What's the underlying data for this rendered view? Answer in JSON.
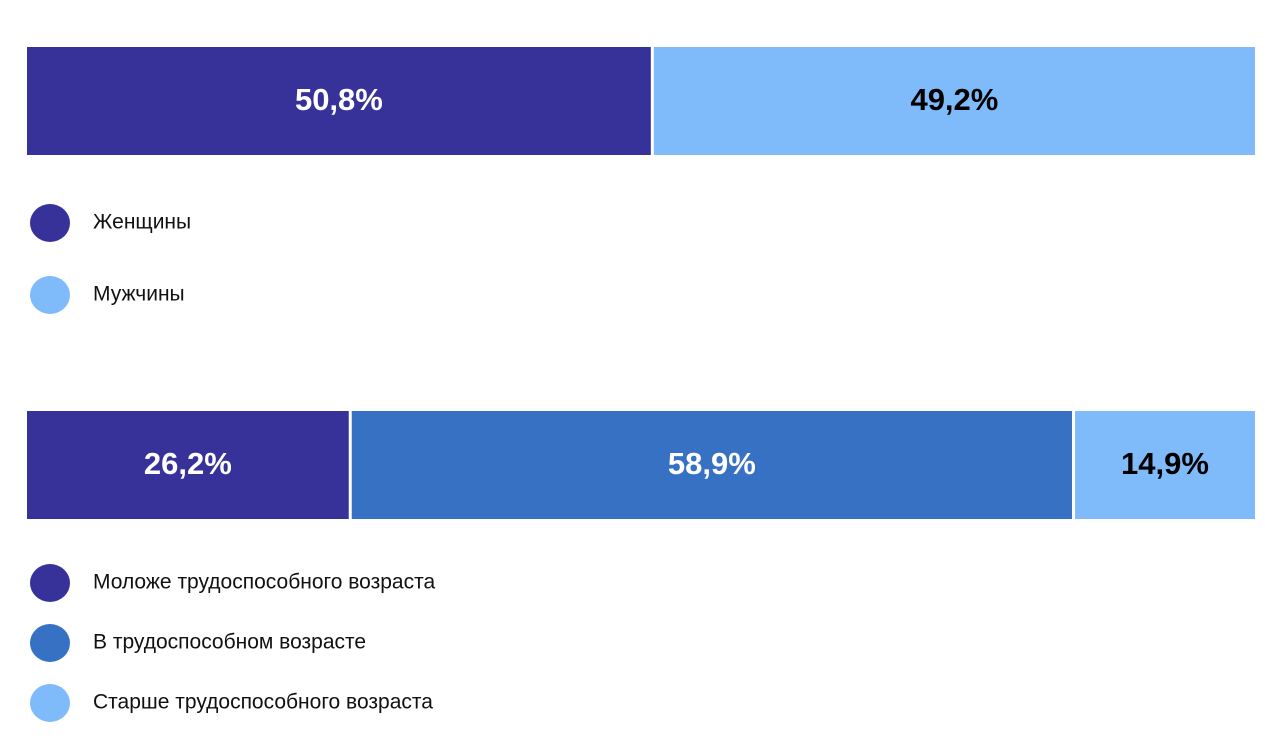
{
  "chart_data": [
    {
      "type": "stacked_bar",
      "orientation": "horizontal",
      "xlim": [
        0,
        100
      ],
      "series": [
        {
          "name": "Женщины",
          "color": "#37319a",
          "values": [
            50.8
          ],
          "value_labels": [
            "50,8%"
          ]
        },
        {
          "name": "Мужчины",
          "color": "#7fbbfa",
          "values": [
            49.2
          ],
          "value_labels": [
            "49,2%"
          ]
        }
      ]
    },
    {
      "type": "stacked_bar",
      "orientation": "horizontal",
      "xlim": [
        0,
        100
      ],
      "series": [
        {
          "name": "Моложе трудоспособного возраста",
          "color": "#37319a",
          "values": [
            26.2
          ],
          "value_labels": [
            "26,2%"
          ]
        },
        {
          "name": "В трудоспособном возрасте",
          "color": "#3771c4",
          "values": [
            58.9
          ],
          "value_labels": [
            "58,9%"
          ]
        },
        {
          "name": "Старше трудоспособного возраста",
          "color": "#7fbbfa",
          "values": [
            14.9
          ],
          "value_labels": [
            "14,9%"
          ]
        }
      ]
    }
  ]
}
